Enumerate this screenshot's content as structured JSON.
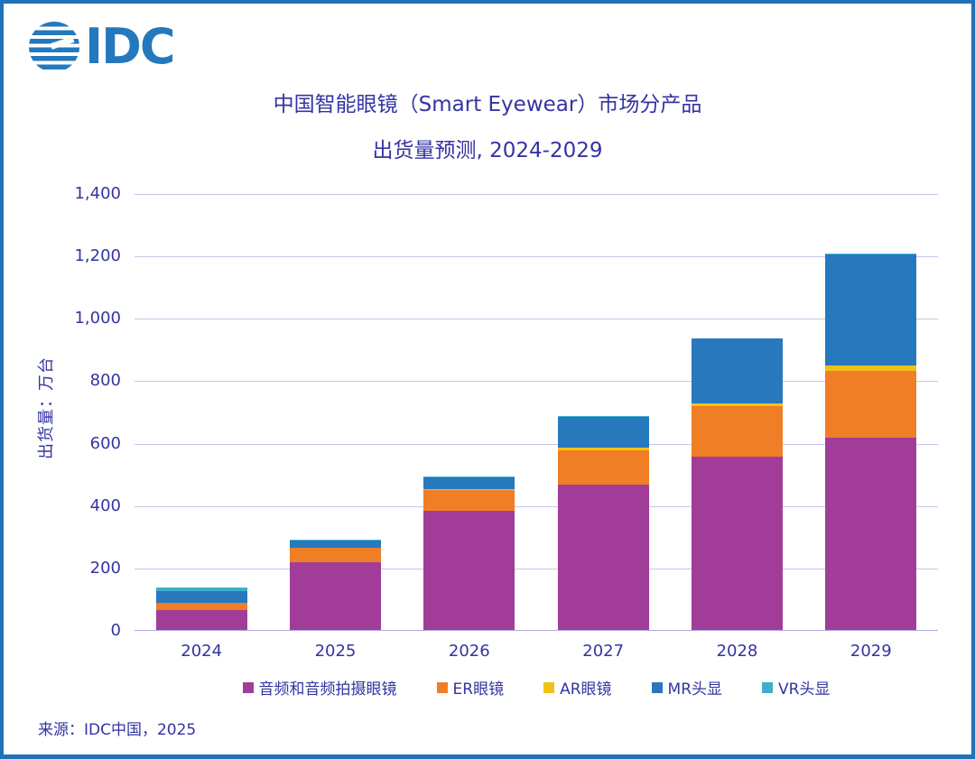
{
  "logo": {
    "text": "IDC"
  },
  "title": {
    "line1": "中国智能眼镜（Smart Eyewear）市场分产品",
    "line2": "出货量预测, 2024-2029"
  },
  "source": "来源：IDC中国，2025",
  "colors": {
    "border_blue": "#2073B9",
    "logo_blue": "#2478BE",
    "text_navy": "#3434A3",
    "gridline": "#C9C4EA"
  },
  "chart_data": {
    "type": "bar",
    "stacked": true,
    "title": "中国智能眼镜（Smart Eyewear）市场分产品 出货量预测, 2024-2029",
    "ylabel": "出货量：万台",
    "xlabel": "",
    "ylim": [
      0,
      1400
    ],
    "ytick_step": 200,
    "ytick_labels": [
      "0",
      "200",
      "400",
      "600",
      "800",
      "1,000",
      "1,200",
      "1,400"
    ],
    "grid": true,
    "legend_position": "bottom",
    "categories": [
      "2024",
      "2025",
      "2026",
      "2027",
      "2028",
      "2029"
    ],
    "series": [
      {
        "name": "音频和音频拍摄眼镜",
        "color": "#A13D98",
        "values": [
          63,
          216,
          381,
          467,
          556,
          616
        ]
      },
      {
        "name": "ER眼镜",
        "color": "#F07E26",
        "values": [
          24,
          46,
          66,
          108,
          161,
          214
        ]
      },
      {
        "name": "AR眼镜",
        "color": "#EFC219",
        "values": [
          1,
          2,
          4,
          9,
          8,
          19
        ]
      },
      {
        "name": "MR头显",
        "color": "#2878BE",
        "values": [
          37,
          22,
          37,
          100,
          208,
          355
        ]
      },
      {
        "name": "VR头显",
        "color": "#3FAECC",
        "values": [
          11,
          4,
          5,
          2,
          2,
          1
        ]
      }
    ],
    "totals": [
      136,
      290,
      493,
      686,
      935,
      1205
    ]
  }
}
